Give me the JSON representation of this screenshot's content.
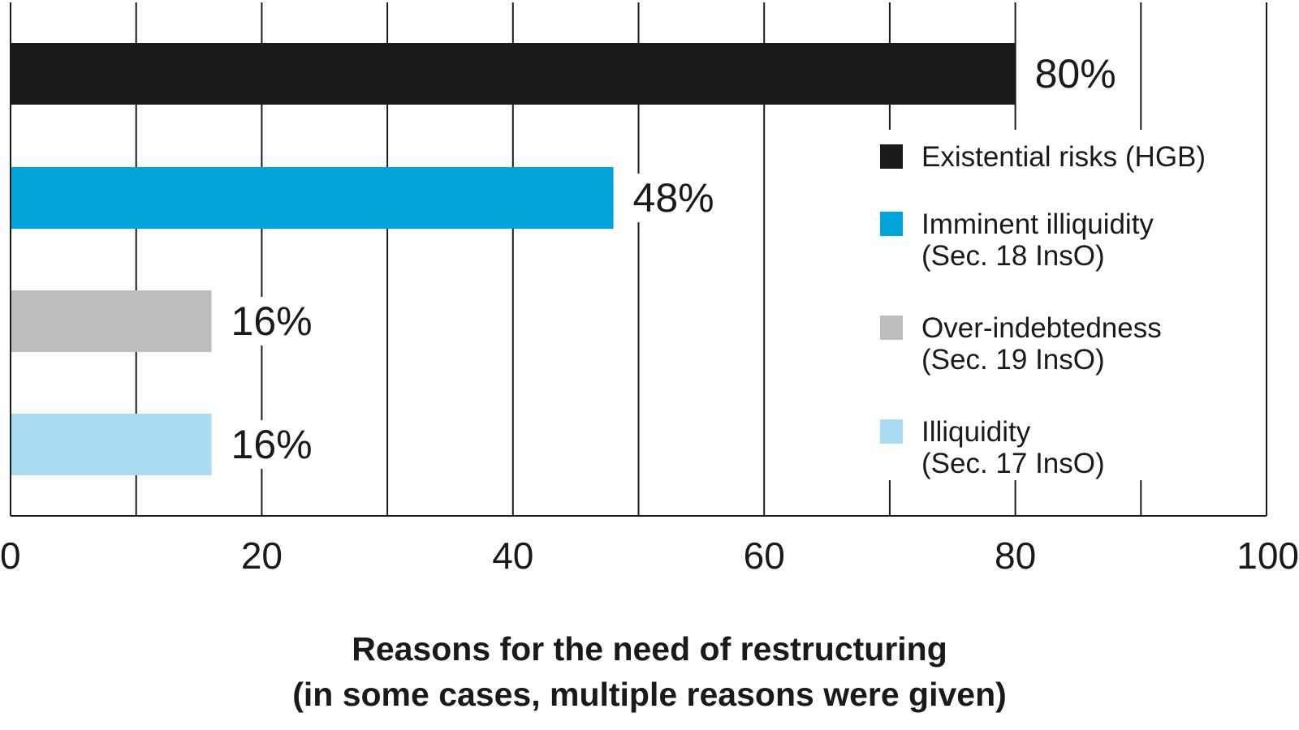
{
  "chart_data": {
    "type": "bar",
    "orientation": "horizontal",
    "categories": [
      "Existential risks (HGB)",
      "Imminent illiquidity (Sec. 18 InsO)",
      "Over-indebtedness (Sec. 19 InsO)",
      "Illiquidity (Sec. 17 InsO)"
    ],
    "values": [
      80,
      48,
      16,
      16
    ],
    "value_labels": [
      "80%",
      "48%",
      "16%",
      "16%"
    ],
    "colors": [
      "#1a1a1a",
      "#00a3da",
      "#bcbec0",
      "#a9dcf2"
    ],
    "xlim": [
      0,
      100
    ],
    "x_ticks": [
      0,
      20,
      40,
      60,
      80,
      100
    ],
    "x_tick_labels": [
      "0",
      "20",
      "40",
      "60",
      "80",
      "100"
    ],
    "gridline_step": 10,
    "grid": true,
    "legend_position": "right",
    "legend": [
      {
        "lines": [
          "Existential risks (HGB)"
        ],
        "color": "#1a1a1a"
      },
      {
        "lines": [
          "Imminent illiquidity",
          "(Sec. 18 InsO)"
        ],
        "color": "#00a3da"
      },
      {
        "lines": [
          "Over-indebtedness",
          "(Sec. 19 InsO)"
        ],
        "color": "#bcbec0"
      },
      {
        "lines": [
          "Illiquidity",
          "(Sec. 17 InsO)"
        ],
        "color": "#a9dcf2"
      }
    ],
    "title_lines": [
      "Reasons for the need of restructuring",
      "(in some cases, multiple reasons were given)"
    ]
  }
}
